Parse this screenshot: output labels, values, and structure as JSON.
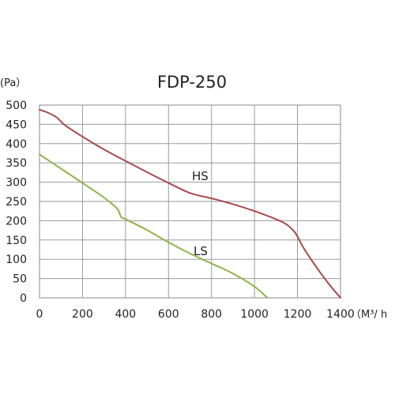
{
  "chart_data": {
    "type": "line",
    "title": "FDP-250",
    "xlabel": "（M³/ h",
    "ylabel": "(Pa）",
    "xlim": [
      0,
      1400
    ],
    "ylim": [
      0,
      500
    ],
    "x_ticks": [
      0,
      200,
      400,
      600,
      800,
      1000,
      1200,
      1400
    ],
    "y_ticks": [
      0,
      50,
      100,
      150,
      200,
      250,
      300,
      350,
      400,
      450,
      500
    ],
    "grid": true,
    "series": [
      {
        "name": "HS",
        "color": "#a64a4a",
        "points": [
          [
            0,
            488
          ],
          [
            40,
            480
          ],
          [
            80,
            468
          ],
          [
            120,
            447
          ],
          [
            200,
            418
          ],
          [
            300,
            385
          ],
          [
            400,
            355
          ],
          [
            500,
            326
          ],
          [
            600,
            298
          ],
          [
            700,
            272
          ],
          [
            800,
            258
          ],
          [
            900,
            243
          ],
          [
            1000,
            225
          ],
          [
            1100,
            204
          ],
          [
            1150,
            190
          ],
          [
            1190,
            168
          ],
          [
            1230,
            128
          ],
          [
            1300,
            70
          ],
          [
            1350,
            33
          ],
          [
            1400,
            0
          ]
        ]
      },
      {
        "name": "LS",
        "color": "#8db34a",
        "points": [
          [
            0,
            372
          ],
          [
            100,
            335
          ],
          [
            200,
            298
          ],
          [
            300,
            260
          ],
          [
            360,
            232
          ],
          [
            380,
            210
          ],
          [
            400,
            204
          ],
          [
            500,
            176
          ],
          [
            600,
            144
          ],
          [
            700,
            115
          ],
          [
            800,
            89
          ],
          [
            900,
            63
          ],
          [
            1000,
            29
          ],
          [
            1060,
            0
          ]
        ]
      }
    ]
  }
}
